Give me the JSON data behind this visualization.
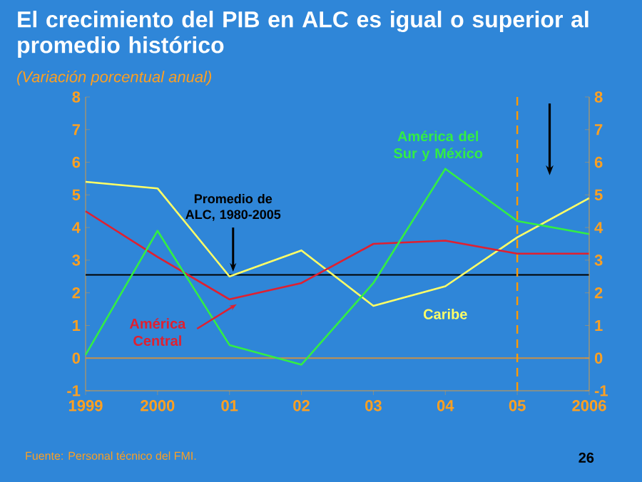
{
  "chart_data": {
    "type": "line",
    "title": "El crecimiento del PIB en ALC es igual o superior al promedio histórico",
    "subtitle": "(Variación porcentual anual)",
    "categories": [
      "1999",
      "2000",
      "01",
      "02",
      "03",
      "04",
      "05",
      "2006"
    ],
    "series": [
      {
        "name": "Caribe",
        "color": "#ffff66",
        "values": [
          5.4,
          5.2,
          2.5,
          3.3,
          1.6,
          2.2,
          3.7,
          4.9
        ]
      },
      {
        "name": "América Central",
        "color": "#e02030",
        "values": [
          4.5,
          3.1,
          1.8,
          2.3,
          3.5,
          3.6,
          3.2,
          3.2
        ]
      },
      {
        "name": "América del Sur y México",
        "color": "#33ee44",
        "values": [
          0.1,
          3.9,
          0.4,
          -0.2,
          2.3,
          5.8,
          4.2,
          3.8
        ]
      }
    ],
    "ylim": [
      -1,
      8
    ],
    "yticks": [
      -1,
      0,
      1,
      2,
      3,
      4,
      5,
      6,
      7,
      8
    ],
    "y2lim": [
      -1,
      8
    ],
    "y2ticks": [
      -1,
      0,
      1,
      2,
      3,
      4,
      5,
      6,
      7,
      8
    ],
    "ref_lines": [
      {
        "axis": "y",
        "value": 2.55,
        "label": "Promedio de ALC, 1980-2005",
        "color": "#000000"
      },
      {
        "axis": "y",
        "value": 0,
        "color": "#c8904a"
      },
      {
        "axis": "x",
        "value": "05",
        "color": "#ff9900",
        "line_style": "dashed"
      }
    ],
    "annotations": [
      "Fuente: Personal técnico del FMI.",
      "26"
    ]
  }
}
